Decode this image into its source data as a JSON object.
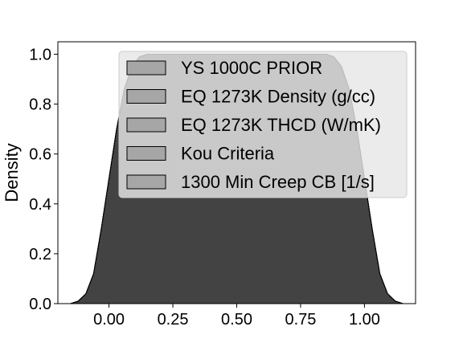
{
  "chart_data": {
    "type": "area",
    "title": "",
    "xlabel": "",
    "ylabel": "Density",
    "xlim": [
      -0.2,
      1.2
    ],
    "ylim": [
      0,
      1.05
    ],
    "xticks": [
      0.0,
      0.25,
      0.5,
      0.75,
      1.0
    ],
    "xtick_labels": [
      "0.00",
      "0.25",
      "0.50",
      "0.75",
      "1.00"
    ],
    "yticks": [
      0.0,
      0.2,
      0.4,
      0.6,
      0.8,
      1.0
    ],
    "ytick_labels": [
      "0.0",
      "0.2",
      "0.4",
      "0.6",
      "0.8",
      "1.0"
    ],
    "grid": false,
    "legend_position": "top-right",
    "x": [
      -0.15,
      -0.12,
      -0.09,
      -0.06,
      -0.03,
      0.0,
      0.03,
      0.06,
      0.09,
      0.12,
      0.15,
      0.2,
      0.3,
      0.5,
      0.7,
      0.8,
      0.85,
      0.88,
      0.91,
      0.94,
      0.97,
      1.0,
      1.03,
      1.06,
      1.09,
      1.12,
      1.15
    ],
    "series": [
      {
        "name": "YS 1000C PRIOR",
        "color": "#a6a6a6",
        "values": [
          0.0,
          0.01,
          0.04,
          0.12,
          0.3,
          0.5,
          0.7,
          0.86,
          0.95,
          0.99,
          1.0,
          1.0,
          1.0,
          1.0,
          1.0,
          1.0,
          1.0,
          0.99,
          0.95,
          0.86,
          0.7,
          0.5,
          0.3,
          0.12,
          0.04,
          0.01,
          0.0
        ]
      },
      {
        "name": "EQ 1273K Density (g/cc)",
        "color": "#a6a6a6",
        "values": [
          0.0,
          0.01,
          0.04,
          0.12,
          0.3,
          0.5,
          0.7,
          0.86,
          0.95,
          0.99,
          1.0,
          1.0,
          1.0,
          1.0,
          1.0,
          1.0,
          1.0,
          0.99,
          0.95,
          0.86,
          0.7,
          0.5,
          0.3,
          0.12,
          0.04,
          0.01,
          0.0
        ]
      },
      {
        "name": "EQ 1273K THCD (W/mK)",
        "color": "#a6a6a6",
        "values": [
          0.0,
          0.01,
          0.04,
          0.12,
          0.3,
          0.5,
          0.7,
          0.86,
          0.95,
          0.99,
          1.0,
          1.0,
          1.0,
          1.0,
          1.0,
          1.0,
          1.0,
          0.99,
          0.95,
          0.86,
          0.7,
          0.5,
          0.3,
          0.12,
          0.04,
          0.01,
          0.0
        ]
      },
      {
        "name": "Kou Criteria",
        "color": "#a6a6a6",
        "values": [
          0.0,
          0.01,
          0.04,
          0.12,
          0.3,
          0.5,
          0.7,
          0.86,
          0.95,
          0.99,
          1.0,
          1.0,
          1.0,
          1.0,
          1.0,
          1.0,
          1.0,
          0.99,
          0.95,
          0.86,
          0.7,
          0.5,
          0.3,
          0.12,
          0.04,
          0.01,
          0.0
        ]
      },
      {
        "name": "1300 Min Creep CB [1/s]",
        "color": "#a6a6a6",
        "values": [
          0.0,
          0.01,
          0.04,
          0.12,
          0.3,
          0.5,
          0.7,
          0.86,
          0.95,
          0.99,
          1.0,
          1.0,
          1.0,
          1.0,
          1.0,
          1.0,
          1.0,
          0.99,
          0.95,
          0.86,
          0.7,
          0.5,
          0.3,
          0.12,
          0.04,
          0.01,
          0.0
        ]
      }
    ]
  }
}
